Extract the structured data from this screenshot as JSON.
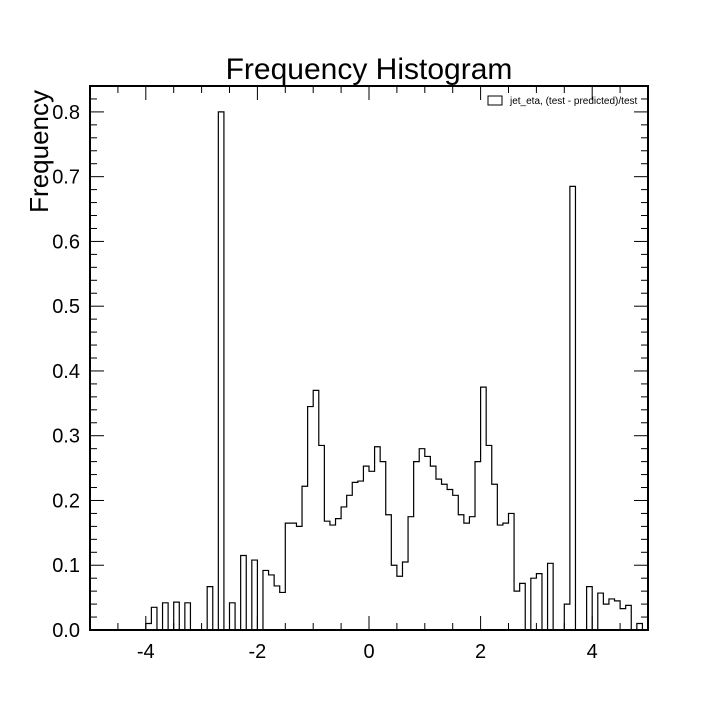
{
  "chart_data": {
    "type": "bar",
    "title": "Frequency Histogram",
    "xlabel": "",
    "ylabel": "Frequency",
    "xlim": [
      -5,
      5
    ],
    "ylim": [
      0,
      0.84
    ],
    "x_ticks": [
      -4,
      -2,
      0,
      2,
      4
    ],
    "x_tick_labels": [
      "-4",
      "-2",
      "0",
      "2",
      "4"
    ],
    "y_ticks": [
      0.0,
      0.1,
      0.2,
      0.3,
      0.4,
      0.5,
      0.6,
      0.7,
      0.8
    ],
    "y_tick_labels": [
      "0.0",
      "0.1",
      "0.2",
      "0.3",
      "0.4",
      "0.5",
      "0.6",
      "0.7",
      "0.8"
    ],
    "grid": false,
    "legend_position": "top-right",
    "style": "step-outline",
    "series": [
      {
        "name": "jet_eta, (test - predicted)/test",
        "color": "#000000",
        "bin_width": 0.1,
        "bin_start": -4.0,
        "values": [
          0.01,
          0.035,
          0.0,
          0.042,
          0.0,
          0.043,
          0.0,
          0.042,
          0.0,
          0.0,
          0.0,
          0.067,
          0.0,
          0.8,
          0.0,
          0.042,
          0.0,
          0.115,
          0.0,
          0.108,
          0.0,
          0.092,
          0.085,
          0.068,
          0.058,
          0.165,
          0.165,
          0.16,
          0.222,
          0.345,
          0.37,
          0.285,
          0.168,
          0.162,
          0.172,
          0.19,
          0.208,
          0.228,
          0.23,
          0.253,
          0.245,
          0.283,
          0.26,
          0.178,
          0.1,
          0.083,
          0.105,
          0.175,
          0.26,
          0.28,
          0.268,
          0.253,
          0.233,
          0.225,
          0.217,
          0.208,
          0.178,
          0.165,
          0.175,
          0.26,
          0.375,
          0.285,
          0.225,
          0.162,
          0.165,
          0.18,
          0.06,
          0.072,
          0.0,
          0.08,
          0.087,
          0.0,
          0.103,
          0.0,
          0.0,
          0.04,
          0.685,
          0.0,
          0.0,
          0.067,
          0.0,
          0.057,
          0.04,
          0.048,
          0.045,
          0.033,
          0.038,
          0.0,
          0.01,
          0.0
        ]
      }
    ]
  }
}
